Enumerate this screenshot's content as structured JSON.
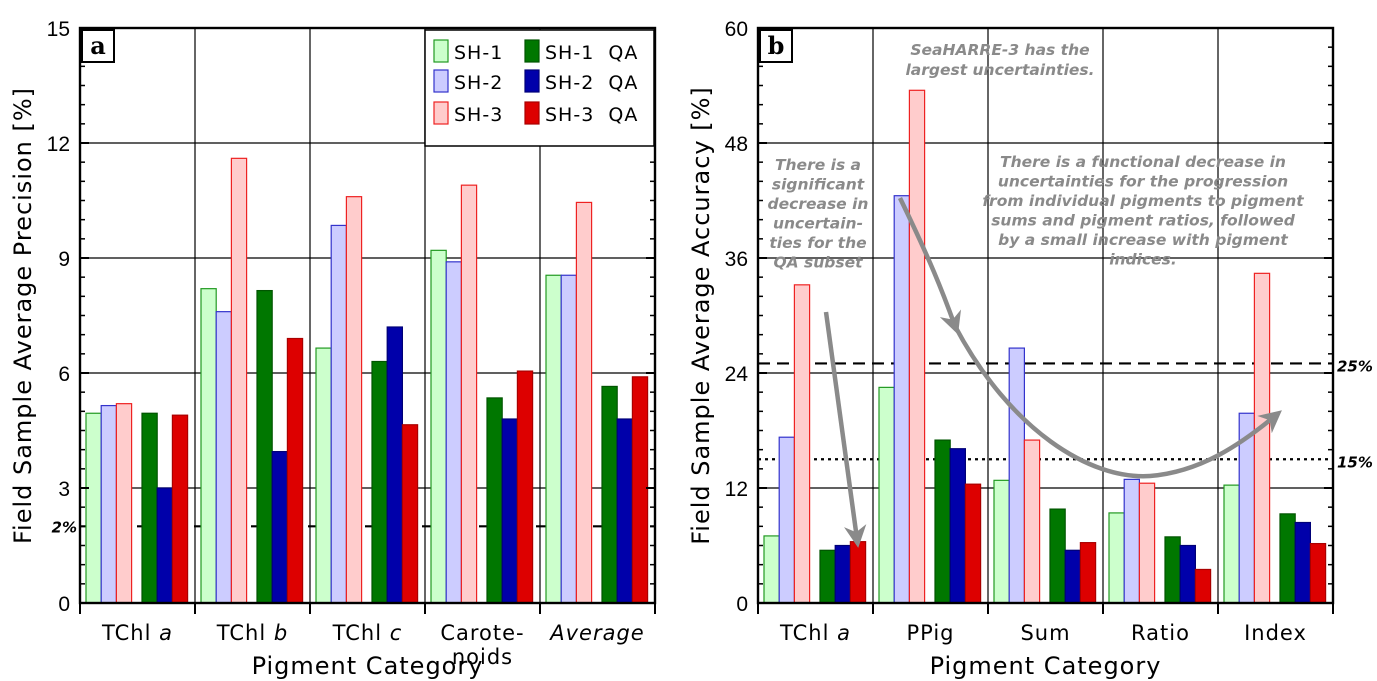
{
  "chart_data": [
    {
      "type": "bar",
      "panel_label": "a",
      "categories": [
        "TChl a",
        "TChl b",
        "TChl c",
        "Carote-noids",
        "Average"
      ],
      "category_labels": [
        [
          "TChl ",
          "a"
        ],
        [
          "TChl ",
          "b"
        ],
        [
          "TChl ",
          "c"
        ],
        [
          "Carote-",
          "noids"
        ],
        [
          "Average"
        ]
      ],
      "xlabel": "Pigment Category",
      "ylabel": "Field Sample Average Precision [%]",
      "ylim": [
        0,
        15
      ],
      "yticks": [
        "0",
        "3",
        "6",
        "9",
        "12",
        "15"
      ],
      "grid": true,
      "legend_position": "top-right",
      "series": [
        {
          "name": "SH-1",
          "legend_label": "SH-1",
          "values": [
            4.95,
            8.2,
            6.65,
            9.2,
            8.55
          ]
        },
        {
          "name": "SH-2",
          "legend_label": "SH-2",
          "values": [
            5.15,
            7.6,
            9.85,
            8.9,
            8.55
          ]
        },
        {
          "name": "SH-3",
          "legend_label": "SH-3",
          "values": [
            5.2,
            11.6,
            10.6,
            10.9,
            10.45
          ]
        },
        {
          "name": "SH-1 QA",
          "legend_label": "SH-1  QA",
          "values": [
            4.95,
            8.15,
            6.3,
            5.35,
            5.65
          ]
        },
        {
          "name": "SH-2 QA",
          "legend_label": "SH-2  QA",
          "values": [
            3.0,
            3.95,
            7.2,
            4.8,
            4.8
          ]
        },
        {
          "name": "SH-3 QA",
          "legend_label": "SH-3  QA",
          "values": [
            4.9,
            6.9,
            4.65,
            6.05,
            5.9
          ]
        }
      ],
      "reference_lines": [
        {
          "value": 2,
          "label": "2%",
          "style": "dashed"
        }
      ]
    },
    {
      "type": "bar",
      "panel_label": "b",
      "categories": [
        "TChl a",
        "PPig",
        "Sum",
        "Ratio",
        "Index"
      ],
      "category_labels": [
        [
          "TChl ",
          "a"
        ],
        [
          "PPig"
        ],
        [
          "Sum"
        ],
        [
          "Ratio"
        ],
        [
          "Index"
        ]
      ],
      "xlabel": "Pigment Category",
      "ylabel": "Field Sample Average Accuracy [%]",
      "ylim": [
        0,
        60
      ],
      "yticks": [
        "0",
        "12",
        "24",
        "36",
        "48",
        "60"
      ],
      "grid": true,
      "series": [
        {
          "name": "SH-1",
          "values": [
            7.0,
            22.5,
            12.8,
            9.4,
            12.3
          ]
        },
        {
          "name": "SH-2",
          "values": [
            17.3,
            42.5,
            26.6,
            12.9,
            19.8
          ]
        },
        {
          "name": "SH-3",
          "values": [
            33.2,
            53.5,
            17.0,
            12.5,
            34.4
          ]
        },
        {
          "name": "SH-1 QA",
          "values": [
            5.5,
            17.0,
            9.8,
            6.9,
            9.3
          ]
        },
        {
          "name": "SH-2 QA",
          "values": [
            6.0,
            16.1,
            5.5,
            6.0,
            8.4
          ]
        },
        {
          "name": "SH-3 QA",
          "values": [
            6.4,
            12.4,
            6.3,
            3.5,
            6.2
          ]
        }
      ],
      "reference_lines": [
        {
          "value": 25,
          "label": "25%",
          "style": "dashed"
        },
        {
          "value": 15,
          "label": "15%",
          "style": "dotted"
        }
      ],
      "annotations": [
        {
          "lines": [
            "SeaHARRE-3 has the",
            "largest uncertainties."
          ]
        },
        {
          "lines": [
            "There is a",
            "significant",
            "decrease in",
            "uncertain-",
            "ties for the",
            "QA subset"
          ]
        },
        {
          "lines": [
            "There is a functional decrease in",
            "uncertainties for the progression",
            "from individual pigments to pigment",
            "sums and pigment ratios, followed",
            "by a small increase with pigment",
            "indices."
          ]
        }
      ]
    }
  ],
  "colors": {
    "SH-1": {
      "fill": "#ccffcc",
      "stroke": "#229922"
    },
    "SH-2": {
      "fill": "#ccccff",
      "stroke": "#3333cc"
    },
    "SH-3": {
      "fill": "#ffcccc",
      "stroke": "#ee2222"
    },
    "SH-1 QA": {
      "fill": "#007700",
      "stroke": "#005500"
    },
    "SH-2 QA": {
      "fill": "#0000aa",
      "stroke": "#000077"
    },
    "SH-3 QA": {
      "fill": "#dd0000",
      "stroke": "#aa0000"
    },
    "annotation": "#8a8a8a"
  }
}
